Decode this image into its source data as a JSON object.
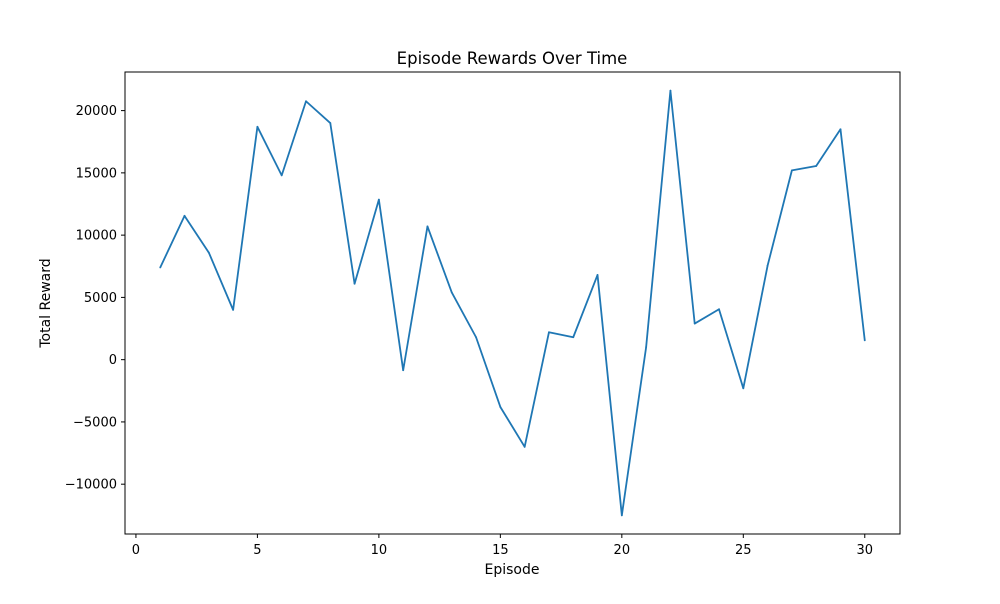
{
  "chart_data": {
    "type": "line",
    "title": "Episode Rewards Over Time",
    "xlabel": "Episode",
    "ylabel": "Total Reward",
    "xlim": [
      -0.45,
      31.45
    ],
    "ylim": [
      -14000,
      23100
    ],
    "x_ticks": [
      0,
      5,
      10,
      15,
      20,
      25,
      30
    ],
    "y_ticks": [
      -10000,
      -5000,
      0,
      5000,
      10000,
      15000,
      20000
    ],
    "x_tick_labels": [
      "0",
      "5",
      "10",
      "15",
      "20",
      "25",
      "30"
    ],
    "y_tick_labels": [
      "−10000",
      "−5000",
      "0",
      "5000",
      "10000",
      "15000",
      "20000"
    ],
    "grid": false,
    "legend": "none",
    "series": [
      {
        "color": "#1f77b4",
        "x": [
          1,
          2,
          3,
          4,
          5,
          6,
          7,
          8,
          9,
          10,
          11,
          12,
          13,
          14,
          15,
          16,
          17,
          18,
          19,
          20,
          21,
          22,
          23,
          24,
          25,
          26,
          27,
          28,
          29,
          30
        ],
        "values": [
          7400,
          11550,
          8600,
          4000,
          18700,
          14800,
          20750,
          19000,
          6100,
          12850,
          -850,
          10700,
          5400,
          1800,
          -3800,
          -7000,
          2200,
          1800,
          6800,
          -12500,
          1000,
          21600,
          2900,
          4050,
          -2300,
          7550,
          15200,
          15550,
          18500,
          1550
        ]
      }
    ]
  }
}
